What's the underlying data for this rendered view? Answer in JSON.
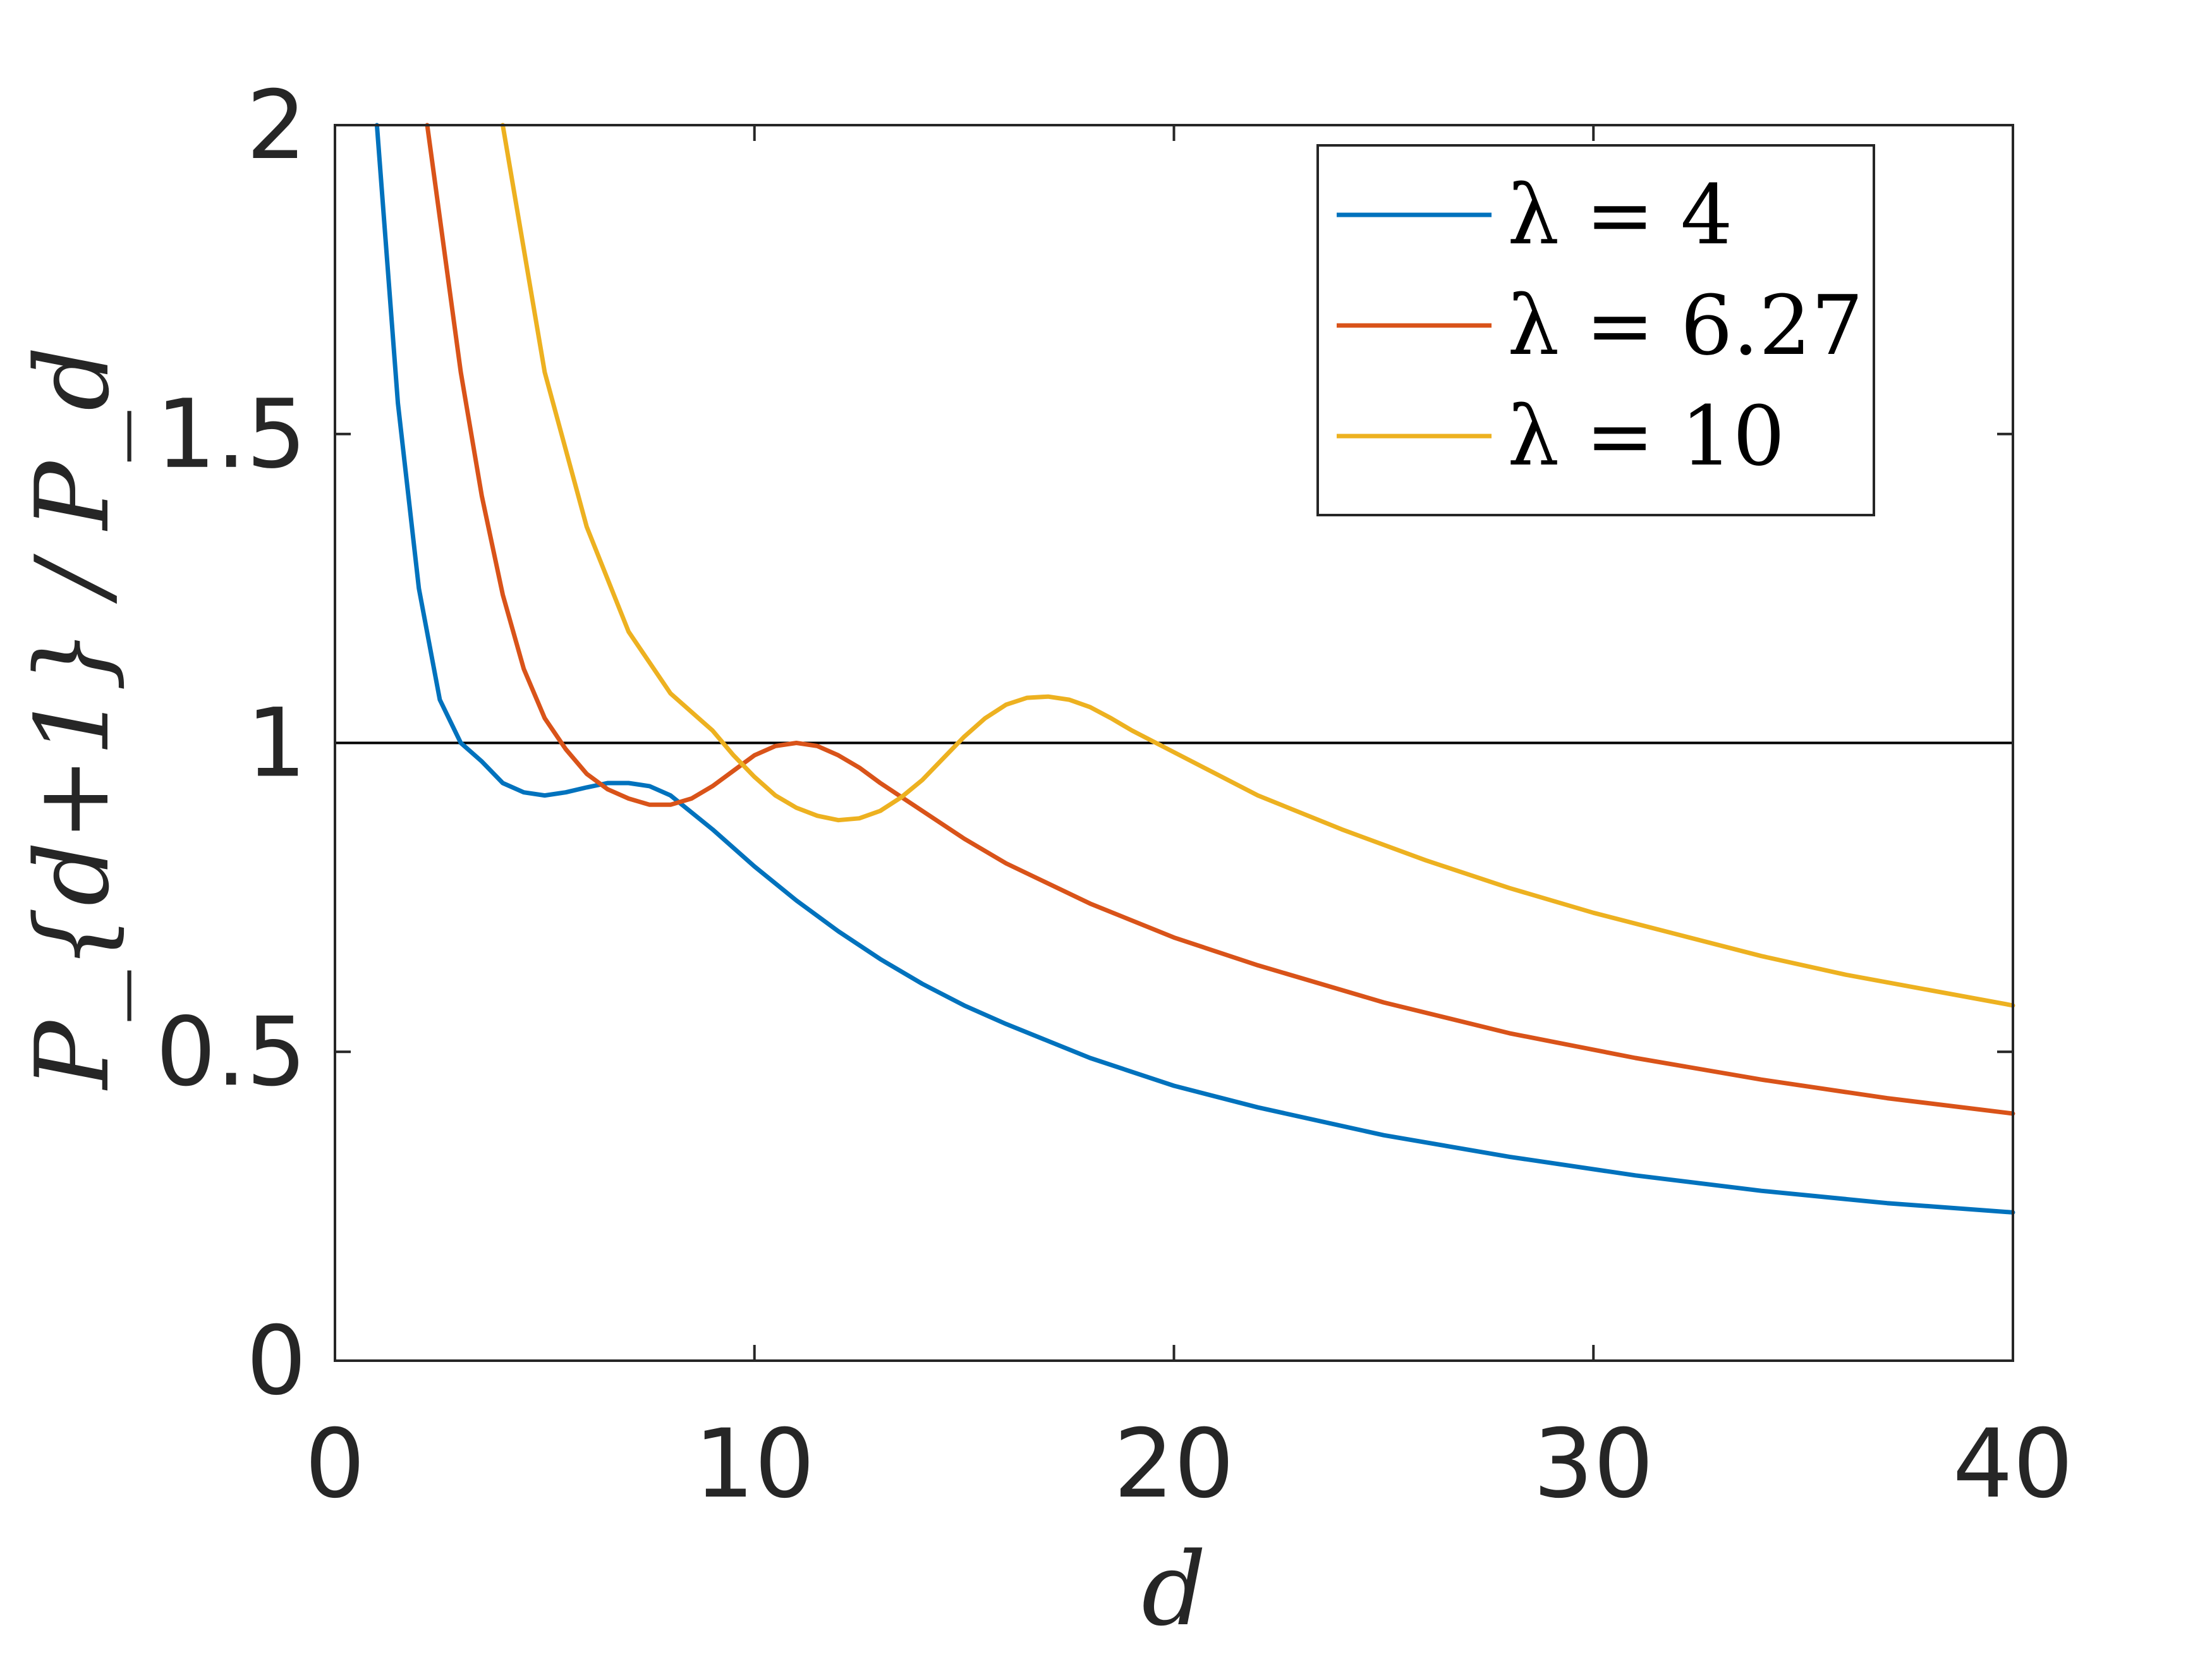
{
  "chart_data": {
    "type": "line",
    "title": "",
    "xlabel": "d",
    "ylabel": "P_{d+1} / P_d",
    "xlim": [
      0,
      40
    ],
    "ylim": [
      0,
      2
    ],
    "xticks": [
      "0",
      "10",
      "20",
      "30",
      "40"
    ],
    "yticks": [
      "0",
      "0.5",
      "1",
      "1.5",
      "2"
    ],
    "grid": false,
    "legend_position": "top-right",
    "reference_line": {
      "y": 1,
      "color": "#000000"
    },
    "series": [
      {
        "name": "λ = 4",
        "color": "#0072BD",
        "x": [
          1.0,
          1.5,
          2.0,
          2.5,
          3.0,
          3.5,
          4.0,
          4.5,
          5.0,
          5.5,
          6.0,
          6.5,
          7.0,
          7.5,
          8.0,
          9.0,
          10.0,
          11.0,
          12.0,
          13.0,
          14.0,
          15.0,
          16.0,
          18.0,
          20.0,
          22.0,
          25.0,
          28.0,
          31.0,
          34.0,
          37.0,
          40.0
        ],
        "y": [
          2.0,
          1.55,
          1.25,
          1.07,
          1.0,
          0.97,
          0.935,
          0.92,
          0.915,
          0.92,
          0.928,
          0.935,
          0.935,
          0.93,
          0.915,
          0.86,
          0.8,
          0.745,
          0.695,
          0.65,
          0.61,
          0.575,
          0.545,
          0.49,
          0.445,
          0.41,
          0.365,
          0.33,
          0.3,
          0.275,
          0.255,
          0.24
        ]
      },
      {
        "name": "λ = 6.27",
        "color": "#D95319",
        "x": [
          2.2,
          3.0,
          3.5,
          4.0,
          4.5,
          5.0,
          5.5,
          6.0,
          6.5,
          7.0,
          7.5,
          8.0,
          8.5,
          9.0,
          9.5,
          10.0,
          10.5,
          11.0,
          11.5,
          12.0,
          12.5,
          13.0,
          14.0,
          15.0,
          16.0,
          18.0,
          20.0,
          22.0,
          25.0,
          28.0,
          31.0,
          34.0,
          37.0,
          40.0
        ],
        "y": [
          2.0,
          1.6,
          1.4,
          1.24,
          1.12,
          1.04,
          0.99,
          0.95,
          0.925,
          0.91,
          0.9,
          0.9,
          0.91,
          0.93,
          0.955,
          0.98,
          0.995,
          1.0,
          0.995,
          0.98,
          0.96,
          0.935,
          0.89,
          0.845,
          0.805,
          0.74,
          0.685,
          0.64,
          0.58,
          0.53,
          0.49,
          0.455,
          0.425,
          0.4
        ]
      },
      {
        "name": "λ = 10",
        "color": "#EDB120",
        "x": [
          4.0,
          5.0,
          6.0,
          7.0,
          8.0,
          9.0,
          9.5,
          10.0,
          10.5,
          11.0,
          11.5,
          12.0,
          12.5,
          13.0,
          13.5,
          14.0,
          14.5,
          15.0,
          15.5,
          16.0,
          16.5,
          17.0,
          17.5,
          18.0,
          18.5,
          19.0,
          20.0,
          21.0,
          22.0,
          24.0,
          26.0,
          28.0,
          30.0,
          32.0,
          34.0,
          36.0,
          38.0,
          40.0
        ],
        "y": [
          2.0,
          1.6,
          1.35,
          1.18,
          1.08,
          1.02,
          0.98,
          0.945,
          0.915,
          0.895,
          0.882,
          0.875,
          0.878,
          0.89,
          0.912,
          0.94,
          0.975,
          1.01,
          1.04,
          1.062,
          1.073,
          1.075,
          1.07,
          1.058,
          1.04,
          1.02,
          0.985,
          0.95,
          0.915,
          0.86,
          0.81,
          0.765,
          0.725,
          0.69,
          0.655,
          0.625,
          0.6,
          0.575
        ]
      }
    ]
  }
}
